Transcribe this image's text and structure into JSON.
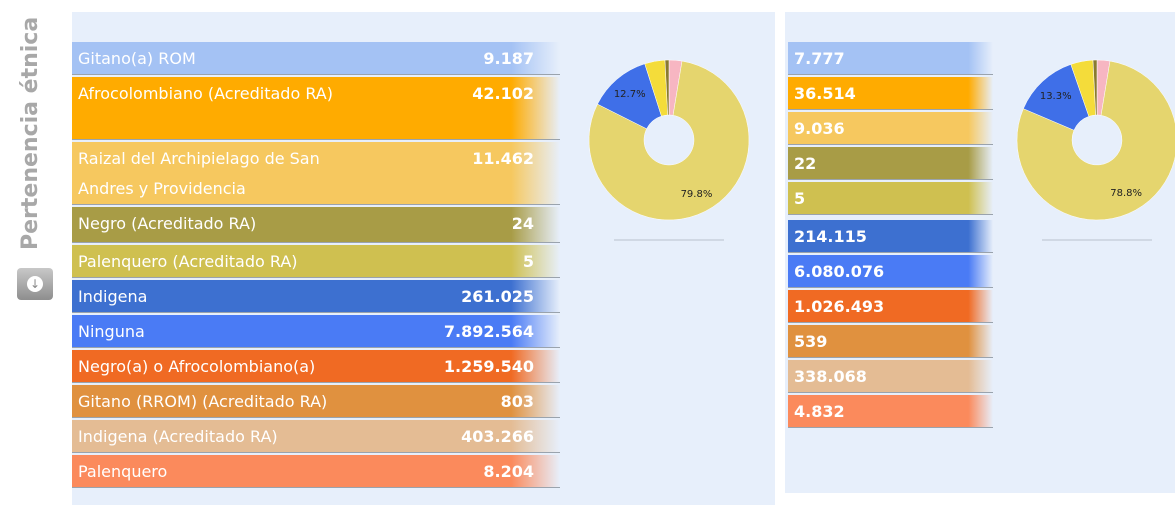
{
  "sidebar_title": "Pertenencia étnica",
  "table_left": {
    "rows": [
      {
        "label": "Gitano(a) ROM",
        "value": "9.187",
        "color": "#a4c2f4"
      },
      {
        "label": "Afrocolombiano (Acreditado RA)",
        "value": "42.102",
        "color": "#ffab00"
      },
      {
        "label": "Raizal del Archipielago de San Andres y Providencia",
        "value": "11.462",
        "color": "#f6c85f"
      },
      {
        "label": "Negro (Acreditado RA)",
        "value": "24",
        "color": "#a89c46"
      },
      {
        "label": "Palenquero (Acreditado RA)",
        "value": "5",
        "color": "#cfc050"
      },
      {
        "label": "Indigena",
        "value": "261.025",
        "color": "#3d70d0"
      },
      {
        "label": "Ninguna",
        "value": "7.892.564",
        "color": "#4a7bf5"
      },
      {
        "label": "Negro(a) o Afrocolombiano(a)",
        "value": "1.259.540",
        "color": "#f06a23"
      },
      {
        "label": "Gitano (RROM) (Acreditado RA)",
        "value": "803",
        "color": "#e0913f"
      },
      {
        "label": "Indigena (Acreditado RA)",
        "value": "403.266",
        "color": "#e4bc94"
      },
      {
        "label": "Palenquero",
        "value": "8.204",
        "color": "#fb8a5c"
      }
    ]
  },
  "table_right": {
    "rows": [
      {
        "value": "7.777",
        "color": "#a4c2f4"
      },
      {
        "value": "36.514",
        "color": "#ffab00"
      },
      {
        "value": "9.036",
        "color": "#f6c85f"
      },
      {
        "value": "22",
        "color": "#a89c46"
      },
      {
        "value": "5",
        "color": "#cfc050"
      },
      {
        "value": "214.115",
        "color": "#3d70d0"
      },
      {
        "value": "6.080.076",
        "color": "#4a7bf5"
      },
      {
        "value": "1.026.493",
        "color": "#f06a23"
      },
      {
        "value": "539",
        "color": "#e0913f"
      },
      {
        "value": "338.068",
        "color": "#e4bc94"
      },
      {
        "value": "4.832",
        "color": "#fb8a5c"
      }
    ]
  },
  "pie_left": {
    "type": "pie",
    "values": [
      2.6,
      79.8,
      12.7,
      4.1,
      0.8
    ],
    "value_labels": [
      null,
      "79.8%",
      "12.7%",
      null,
      null
    ],
    "colors": [
      "#f7b6c2",
      "#e5d56e",
      "#3f6fe8",
      "#f4dc3a",
      "#8a7a30"
    ]
  },
  "pie_right": {
    "type": "pie",
    "values": [
      2.6,
      78.8,
      13.3,
      4.5,
      0.8
    ],
    "value_labels": [
      null,
      "78.8%",
      "13.3%",
      null,
      null
    ],
    "colors": [
      "#f7b6c2",
      "#e5d56e",
      "#3f6fe8",
      "#f4dc3a",
      "#8a7a30"
    ]
  }
}
